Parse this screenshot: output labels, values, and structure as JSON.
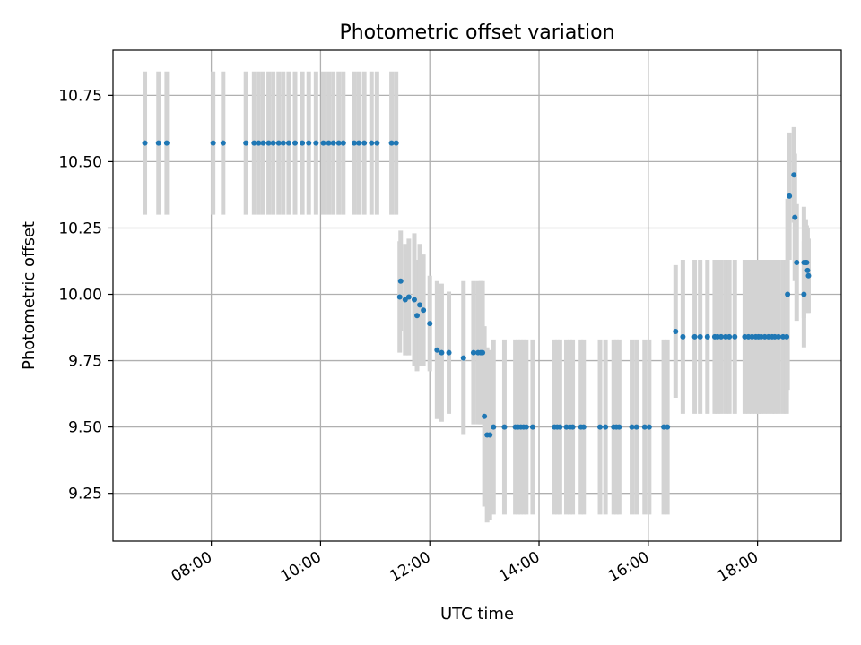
{
  "chart_data": {
    "type": "scatter",
    "title": "Photometric offset variation",
    "xlabel": "UTC time",
    "ylabel": "Photometric offset",
    "x_is_time": true,
    "xlim": [
      "06:12",
      "19:32"
    ],
    "ylim": [
      9.07,
      10.92
    ],
    "grid": true,
    "xticks": [
      "08:00",
      "10:00",
      "12:00",
      "14:00",
      "16:00",
      "18:00"
    ],
    "yticks": [
      "9.25",
      "9.50",
      "9.75",
      "10.00",
      "10.25",
      "10.50",
      "10.75"
    ],
    "colors": {
      "point": "#1f77b4",
      "errorbar": "#d3d3d3",
      "grid": "#b0b0b0"
    },
    "points": [
      {
        "x": "06:47",
        "y": 10.57,
        "err": 0.27
      },
      {
        "x": "07:02",
        "y": 10.57,
        "err": 0.27
      },
      {
        "x": "07:11",
        "y": 10.57,
        "err": 0.27
      },
      {
        "x": "08:02",
        "y": 10.57,
        "err": 0.27
      },
      {
        "x": "08:13",
        "y": 10.57,
        "err": 0.27
      },
      {
        "x": "08:38",
        "y": 10.57,
        "err": 0.27
      },
      {
        "x": "08:47",
        "y": 10.57,
        "err": 0.27
      },
      {
        "x": "08:52",
        "y": 10.57,
        "err": 0.27
      },
      {
        "x": "08:57",
        "y": 10.57,
        "err": 0.27
      },
      {
        "x": "09:03",
        "y": 10.57,
        "err": 0.27
      },
      {
        "x": "09:08",
        "y": 10.57,
        "err": 0.27
      },
      {
        "x": "09:14",
        "y": 10.57,
        "err": 0.27
      },
      {
        "x": "09:19",
        "y": 10.57,
        "err": 0.27
      },
      {
        "x": "09:25",
        "y": 10.57,
        "err": 0.27
      },
      {
        "x": "09:32",
        "y": 10.57,
        "err": 0.27
      },
      {
        "x": "09:40",
        "y": 10.57,
        "err": 0.27
      },
      {
        "x": "09:47",
        "y": 10.57,
        "err": 0.27
      },
      {
        "x": "09:55",
        "y": 10.57,
        "err": 0.27
      },
      {
        "x": "10:03",
        "y": 10.57,
        "err": 0.27
      },
      {
        "x": "10:09",
        "y": 10.57,
        "err": 0.27
      },
      {
        "x": "10:14",
        "y": 10.57,
        "err": 0.27
      },
      {
        "x": "10:20",
        "y": 10.57,
        "err": 0.27
      },
      {
        "x": "10:25",
        "y": 10.57,
        "err": 0.27
      },
      {
        "x": "10:37",
        "y": 10.57,
        "err": 0.27
      },
      {
        "x": "10:42",
        "y": 10.57,
        "err": 0.27
      },
      {
        "x": "10:48",
        "y": 10.57,
        "err": 0.27
      },
      {
        "x": "10:56",
        "y": 10.57,
        "err": 0.27
      },
      {
        "x": "11:02",
        "y": 10.57,
        "err": 0.27
      },
      {
        "x": "11:18",
        "y": 10.57,
        "err": 0.27
      },
      {
        "x": "11:23",
        "y": 10.57,
        "err": 0.27
      },
      {
        "x": "11:27",
        "y": 9.99,
        "err": 0.21
      },
      {
        "x": "11:28",
        "y": 10.05,
        "err": 0.19
      },
      {
        "x": "11:33",
        "y": 9.98,
        "err": 0.21
      },
      {
        "x": "11:37",
        "y": 9.99,
        "err": 0.22
      },
      {
        "x": "11:43",
        "y": 9.98,
        "err": 0.25
      },
      {
        "x": "11:46",
        "y": 9.92,
        "err": 0.21
      },
      {
        "x": "11:49",
        "y": 9.96,
        "err": 0.23
      },
      {
        "x": "11:53",
        "y": 9.94,
        "err": 0.21
      },
      {
        "x": "12:00",
        "y": 9.89,
        "err": 0.18
      },
      {
        "x": "12:08",
        "y": 9.79,
        "err": 0.26
      },
      {
        "x": "12:13",
        "y": 9.78,
        "err": 0.26
      },
      {
        "x": "12:21",
        "y": 9.78,
        "err": 0.23
      },
      {
        "x": "12:37",
        "y": 9.76,
        "err": 0.29
      },
      {
        "x": "12:48",
        "y": 9.78,
        "err": 0.27
      },
      {
        "x": "12:53",
        "y": 9.78,
        "err": 0.27
      },
      {
        "x": "12:56",
        "y": 9.78,
        "err": 0.27
      },
      {
        "x": "12:58",
        "y": 9.78,
        "err": 0.27
      },
      {
        "x": "13:00",
        "y": 9.54,
        "err": 0.34
      },
      {
        "x": "13:03",
        "y": 9.47,
        "err": 0.33
      },
      {
        "x": "13:06",
        "y": 9.47,
        "err": 0.32
      },
      {
        "x": "13:10",
        "y": 9.5,
        "err": 0.33
      },
      {
        "x": "13:22",
        "y": 9.5,
        "err": 0.33
      },
      {
        "x": "13:34",
        "y": 9.5,
        "err": 0.33
      },
      {
        "x": "13:37",
        "y": 9.5,
        "err": 0.33
      },
      {
        "x": "13:40",
        "y": 9.5,
        "err": 0.33
      },
      {
        "x": "13:43",
        "y": 9.5,
        "err": 0.33
      },
      {
        "x": "13:46",
        "y": 9.5,
        "err": 0.33
      },
      {
        "x": "13:53",
        "y": 9.5,
        "err": 0.33
      },
      {
        "x": "14:17",
        "y": 9.5,
        "err": 0.33
      },
      {
        "x": "14:20",
        "y": 9.5,
        "err": 0.33
      },
      {
        "x": "14:23",
        "y": 9.5,
        "err": 0.33
      },
      {
        "x": "14:30",
        "y": 9.5,
        "err": 0.33
      },
      {
        "x": "14:34",
        "y": 9.5,
        "err": 0.33
      },
      {
        "x": "14:37",
        "y": 9.5,
        "err": 0.33
      },
      {
        "x": "14:46",
        "y": 9.5,
        "err": 0.33
      },
      {
        "x": "14:49",
        "y": 9.5,
        "err": 0.33
      },
      {
        "x": "15:07",
        "y": 9.5,
        "err": 0.33
      },
      {
        "x": "15:13",
        "y": 9.5,
        "err": 0.33
      },
      {
        "x": "15:22",
        "y": 9.5,
        "err": 0.33
      },
      {
        "x": "15:25",
        "y": 9.5,
        "err": 0.33
      },
      {
        "x": "15:28",
        "y": 9.5,
        "err": 0.33
      },
      {
        "x": "15:42",
        "y": 9.5,
        "err": 0.33
      },
      {
        "x": "15:47",
        "y": 9.5,
        "err": 0.33
      },
      {
        "x": "15:56",
        "y": 9.5,
        "err": 0.33
      },
      {
        "x": "16:01",
        "y": 9.5,
        "err": 0.33
      },
      {
        "x": "16:17",
        "y": 9.5,
        "err": 0.33
      },
      {
        "x": "16:21",
        "y": 9.5,
        "err": 0.33
      },
      {
        "x": "16:30",
        "y": 9.86,
        "err": 0.25
      },
      {
        "x": "16:38",
        "y": 9.84,
        "err": 0.29
      },
      {
        "x": "16:51",
        "y": 9.84,
        "err": 0.29
      },
      {
        "x": "16:57",
        "y": 9.84,
        "err": 0.29
      },
      {
        "x": "17:05",
        "y": 9.84,
        "err": 0.29
      },
      {
        "x": "17:13",
        "y": 9.84,
        "err": 0.29
      },
      {
        "x": "17:16",
        "y": 9.84,
        "err": 0.29
      },
      {
        "x": "17:20",
        "y": 9.84,
        "err": 0.29
      },
      {
        "x": "17:25",
        "y": 9.84,
        "err": 0.29
      },
      {
        "x": "17:29",
        "y": 9.84,
        "err": 0.29
      },
      {
        "x": "17:35",
        "y": 9.84,
        "err": 0.29
      },
      {
        "x": "17:46",
        "y": 9.84,
        "err": 0.29
      },
      {
        "x": "17:50",
        "y": 9.84,
        "err": 0.29
      },
      {
        "x": "17:54",
        "y": 9.84,
        "err": 0.29
      },
      {
        "x": "17:58",
        "y": 9.84,
        "err": 0.29
      },
      {
        "x": "18:01",
        "y": 9.84,
        "err": 0.29
      },
      {
        "x": "18:04",
        "y": 9.84,
        "err": 0.29
      },
      {
        "x": "18:08",
        "y": 9.84,
        "err": 0.29
      },
      {
        "x": "18:12",
        "y": 9.84,
        "err": 0.29
      },
      {
        "x": "18:16",
        "y": 9.84,
        "err": 0.29
      },
      {
        "x": "18:19",
        "y": 9.84,
        "err": 0.29
      },
      {
        "x": "18:23",
        "y": 9.84,
        "err": 0.29
      },
      {
        "x": "18:28",
        "y": 9.84,
        "err": 0.29
      },
      {
        "x": "18:32",
        "y": 9.84,
        "err": 0.29
      },
      {
        "x": "18:33",
        "y": 10.0,
        "err": 0.36
      },
      {
        "x": "18:35",
        "y": 10.37,
        "err": 0.24
      },
      {
        "x": "18:40",
        "y": 10.45,
        "err": 0.18
      },
      {
        "x": "18:41",
        "y": 10.29,
        "err": 0.24
      },
      {
        "x": "18:43",
        "y": 10.12,
        "err": 0.22
      },
      {
        "x": "18:51",
        "y": 10.0,
        "err": 0.2
      },
      {
        "x": "18:51",
        "y": 10.12,
        "err": 0.21
      },
      {
        "x": "18:53",
        "y": 10.12,
        "err": 0.16
      },
      {
        "x": "18:54",
        "y": 10.12,
        "err": 0.14
      },
      {
        "x": "18:55",
        "y": 10.09,
        "err": 0.16
      },
      {
        "x": "18:56",
        "y": 10.07,
        "err": 0.14
      }
    ]
  }
}
